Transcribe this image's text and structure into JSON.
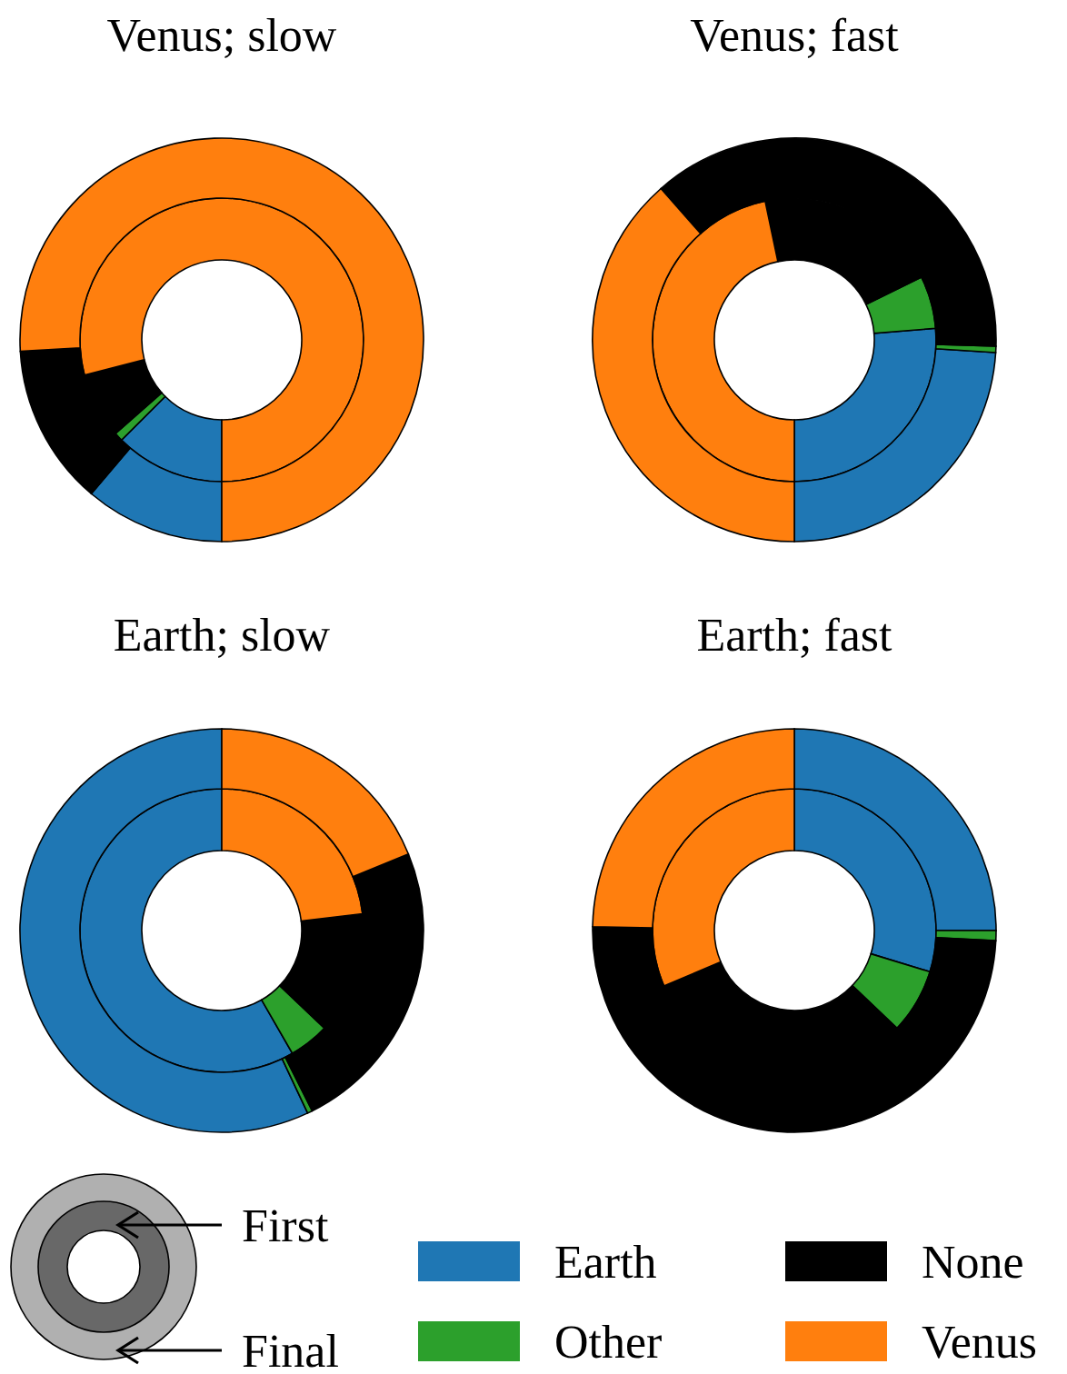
{
  "chart_data": [
    {
      "type": "donut",
      "title": "Venus; slow",
      "categories": [
        "Earth",
        "Other",
        "None",
        "Venus"
      ],
      "colors": [
        "#1f77b4",
        "#2ca02c",
        "#000000",
        "#ff7f0e"
      ],
      "legend": "bottom",
      "series": [
        {
          "name": "First",
          "values": [
            12.5,
            1,
            7.5,
            79
          ]
        },
        {
          "name": "Final",
          "values": [
            11.2,
            0,
            12.9,
            75.9
          ]
        }
      ]
    },
    {
      "type": "donut",
      "title": "Venus; fast",
      "categories": [
        null,
        null,
        null,
        null
      ],
      "colors": [
        "#1f77b4",
        "#2ca02c",
        "#000000",
        "#ff7f0e"
      ],
      "series": [
        {
          "values": [
            26.3,
            6,
            21,
            46.7
          ]
        },
        {
          "values": [
            24,
            0.5,
            37,
            38.5
          ]
        }
      ]
    },
    {
      "type": "donut",
      "title": "Earth; slow",
      "categories": [
        null,
        null,
        null,
        null
      ],
      "colors": [
        "#1f77b4",
        "#2ca02c",
        "#000000",
        "#ff7f0e"
      ],
      "series": [
        {
          "values": [
            58.3,
            4.6,
            14,
            23.1
          ]
        },
        {
          "values": [
            57,
            0.4,
            23.8,
            18.8
          ]
        }
      ]
    },
    {
      "type": "donut",
      "title": "Earth; fast",
      "categories": [
        null,
        null,
        null,
        null
      ],
      "colors": [
        "#1f77b4",
        "#2ca02c",
        "#000000",
        "#ff7f0e"
      ],
      "series": [
        {
          "values": [
            29.7,
            7.4,
            31.5,
            31.4
          ]
        },
        {
          "values": [
            25,
            0.8,
            49.5,
            24.7
          ]
        }
      ]
    }
  ]
}
